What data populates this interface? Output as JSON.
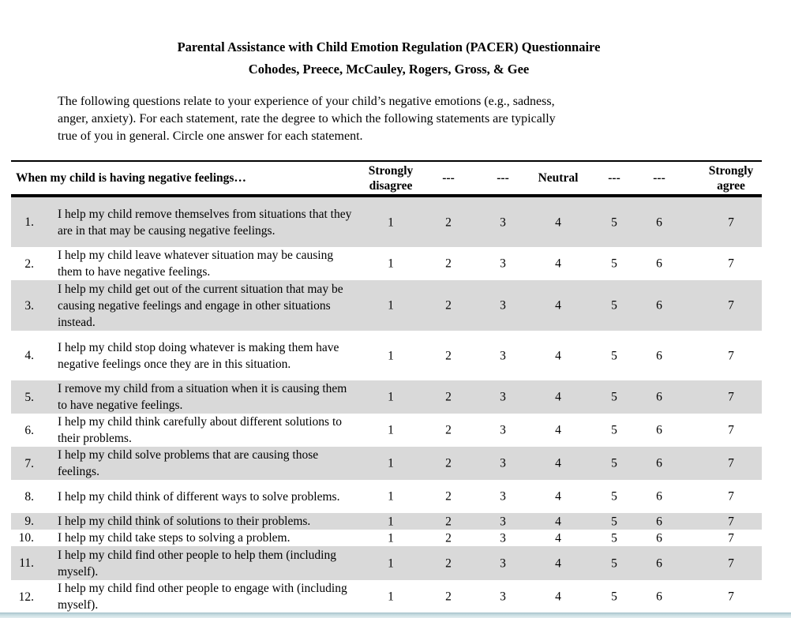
{
  "header": {
    "title": "Parental Assistance with Child Emotion Regulation (PACER) Questionnaire",
    "authors": "Cohodes, Preece, McCauley, Rogers, Gross, & Gee"
  },
  "instructions": {
    "lines": [
      "The following questions relate to your experience of your child’s negative emotions (e.g., sadness,",
      "anger, anxiety). For each statement, rate the degree to which the following statements are typically",
      "true of you in general. Circle one answer for each statement."
    ]
  },
  "table": {
    "stem_header": "When my child is having negative feelings…",
    "scale_headers": [
      "Strongly disagree",
      "---",
      "---",
      "Neutral",
      "---",
      "---",
      "Strongly agree"
    ],
    "scale_values": [
      "1",
      "2",
      "3",
      "4",
      "5",
      "6",
      "7"
    ],
    "shading_color": "#d9d9d9",
    "rows": [
      {
        "num": "1.",
        "text": "I help my child remove themselves from situations that they are in that may be causing negative feelings."
      },
      {
        "num": "2.",
        "text": "I help my child leave whatever situation may be causing them to have negative feelings."
      },
      {
        "num": "3.",
        "text": "I help my child get out of the current situation that may be causing negative feelings and engage in other situations instead."
      },
      {
        "num": "4.",
        "text": "I help my child stop doing whatever is making them have negative feelings once they are in this situation."
      },
      {
        "num": "5.",
        "text": "I remove my child from a situation when it is causing them to have negative feelings."
      },
      {
        "num": "6.",
        "text": "I help my child think carefully about different solutions to their problems."
      },
      {
        "num": "7.",
        "text": "I help my child solve problems that are causing those feelings."
      },
      {
        "num": "8.",
        "text": "I help my child think of different ways to solve problems."
      },
      {
        "num": "9.",
        "text": "I help my child think of solutions to their problems."
      },
      {
        "num": "10.",
        "text": "I help my child take steps to solving a problem."
      },
      {
        "num": "11.",
        "text": "I help my child find other people to help them (including myself)."
      },
      {
        "num": "12.",
        "text": "I help my child find other people to engage with (including myself)."
      }
    ]
  }
}
